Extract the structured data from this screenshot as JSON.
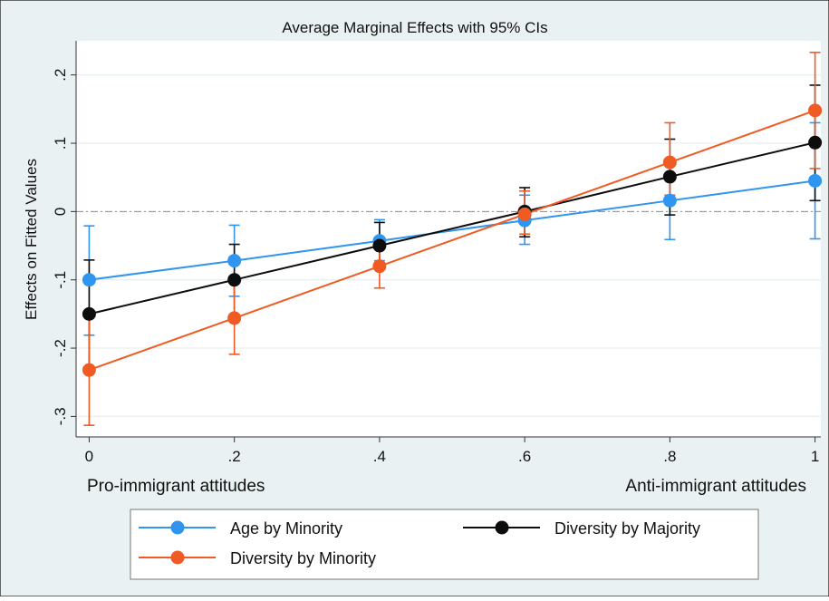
{
  "chart_data": {
    "type": "line",
    "title": "Average Marginal Effects with 95% CIs",
    "ylabel": "Effects on Fitted Values",
    "xlabel_left": "Pro-immigrant attitudes",
    "xlabel_right": "Anti-immigrant attitudes",
    "x": [
      0,
      0.2,
      0.4,
      0.6,
      0.8,
      1
    ],
    "xticks": [
      0,
      0.2,
      0.4,
      0.6,
      0.8,
      1
    ],
    "xtick_labels": [
      "0",
      ".2",
      ".4",
      ".6",
      ".8",
      "1"
    ],
    "yticks": [
      -0.3,
      -0.2,
      -0.1,
      0,
      0.1,
      0.2
    ],
    "ytick_labels": [
      "-.3",
      "-.2",
      "-.1",
      "0",
      ".1",
      ".2"
    ],
    "xlim": [
      -0.018,
      1.008
    ],
    "ylim": [
      -0.33,
      0.25
    ],
    "grid": true,
    "reference_line_y": 0,
    "legend_position": "bottom",
    "series": [
      {
        "name": "Age by Minority",
        "color": "#2f95ef",
        "values": [
          -0.1,
          -0.072,
          -0.043,
          -0.013,
          0.016,
          0.045
        ],
        "ci_low": [
          -0.181,
          -0.124,
          -0.072,
          -0.048,
          -0.041,
          -0.04
        ],
        "ci_high": [
          -0.021,
          -0.02,
          -0.012,
          0.024,
          0.07,
          0.13
        ]
      },
      {
        "name": "Diversity by Majority",
        "color": "#0d0d0d",
        "values": [
          -0.15,
          -0.1,
          -0.05,
          0.0,
          0.051,
          0.101
        ],
        "ci_low": [
          -0.228,
          -0.151,
          -0.083,
          -0.037,
          -0.005,
          0.016
        ],
        "ci_high": [
          -0.071,
          -0.048,
          -0.016,
          0.035,
          0.106,
          0.185
        ]
      },
      {
        "name": "Diversity by Minority",
        "color": "#f05a23",
        "values": [
          -0.232,
          -0.156,
          -0.08,
          -0.004,
          0.072,
          0.148
        ],
        "ci_low": [
          -0.313,
          -0.209,
          -0.112,
          -0.033,
          0.024,
          0.063
        ],
        "ci_high": [
          -0.149,
          -0.102,
          -0.046,
          0.03,
          0.13,
          0.233
        ]
      }
    ]
  }
}
